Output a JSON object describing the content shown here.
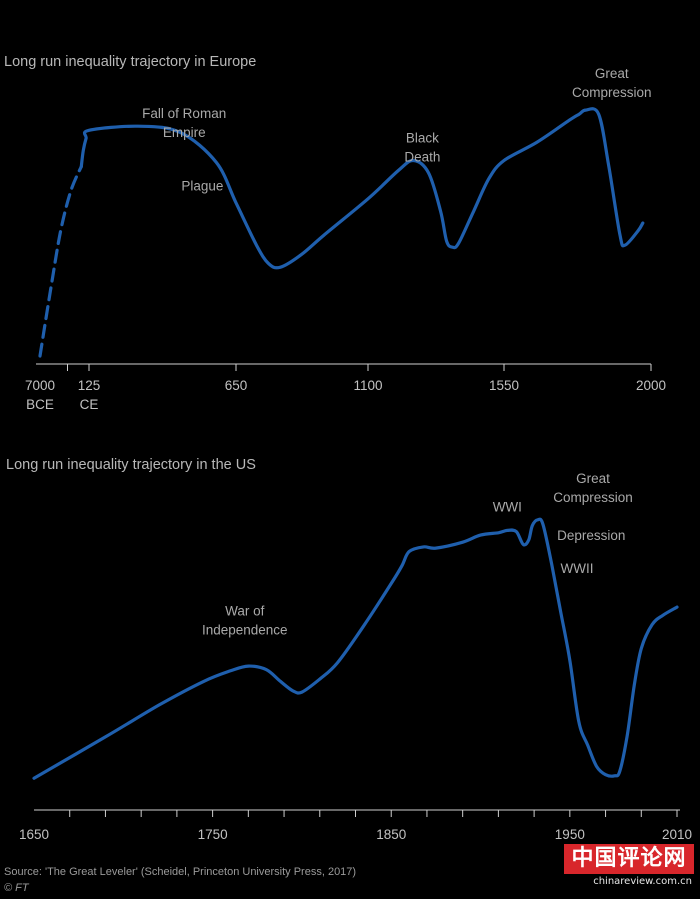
{
  "source": "Source: 'The Great Leveler' (Scheidel, Princeton University Press, 2017)",
  "credit": "© FT",
  "watermark": {
    "logo": "中国评论网",
    "url": "chinareview.com.cn"
  },
  "colors": {
    "background": "#000000",
    "line": "#1f5fad",
    "axis": "#cfcfcf",
    "text": "#aaaaaa"
  },
  "chart_data": [
    {
      "type": "line",
      "title": "Long run inequality trajectory in Europe",
      "xlabel": "",
      "ylabel": "",
      "y_axis_shown": false,
      "x_ticks": [
        {
          "label": [
            "7000",
            "BCE"
          ],
          "x": -7000,
          "tick": false
        },
        {
          "label": [
            "125",
            "CE"
          ],
          "x": 125
        },
        {
          "label": [
            "650"
          ],
          "x": 650
        },
        {
          "label": [
            "1100"
          ],
          "x": 1100
        },
        {
          "label": [
            "1550"
          ],
          "x": 1550
        },
        {
          "label": [
            "2000"
          ],
          "x": 2000
        }
      ],
      "minor_ticks": [
        -3000,
        125,
        650,
        1100,
        1550,
        2000
      ],
      "series": [
        {
          "style": "dashed",
          "points": [
            [
              -7000,
              0
            ],
            [
              -5500,
              32
            ],
            [
              -4000,
              62
            ],
            [
              -2500,
              82
            ],
            [
              -1000,
              94
            ]
          ]
        },
        {
          "style": "solid",
          "points": [
            [
              -1000,
              94
            ],
            [
              -700,
              102
            ],
            [
              -300,
              108
            ],
            [
              125,
              112
            ],
            [
              300,
              114
            ],
            [
              450,
              111
            ],
            [
              580,
              96
            ],
            [
              650,
              76
            ],
            [
              720,
              55
            ],
            [
              760,
              46
            ],
            [
              800,
              44
            ],
            [
              870,
              50
            ],
            [
              950,
              60
            ],
            [
              1100,
              78
            ],
            [
              1200,
              92
            ],
            [
              1250,
              97
            ],
            [
              1300,
              91
            ],
            [
              1340,
              72
            ],
            [
              1360,
              57
            ],
            [
              1380,
              54
            ],
            [
              1400,
              56
            ],
            [
              1450,
              72
            ],
            [
              1500,
              88
            ],
            [
              1550,
              97
            ],
            [
              1650,
              106
            ],
            [
              1750,
              117
            ],
            [
              1780,
              120
            ],
            [
              1800,
              122
            ],
            [
              1840,
              120
            ],
            [
              1870,
              95
            ],
            [
              1905,
              60
            ],
            [
              1920,
              55
            ],
            [
              1960,
              62
            ],
            [
              1975,
              66
            ]
          ]
        }
      ],
      "xlim": [
        -7000,
        2000
      ],
      "ylim": [
        0,
        130
      ],
      "annotations": [
        {
          "lines": [
            "Fall of Roman",
            "Empire"
          ],
          "x": 465,
          "y": 118
        },
        {
          "lines": [
            "Plague"
          ],
          "x": 530,
          "y": 82
        },
        {
          "lines": [
            "Black",
            "Death"
          ],
          "x": 1280,
          "y": 106
        },
        {
          "lines": [
            "Great",
            "Compression"
          ],
          "x": 1880,
          "y": 138
        }
      ]
    },
    {
      "type": "line",
      "title": "Long run inequality trajectory in the US",
      "xlabel": "",
      "ylabel": "",
      "y_axis_shown": false,
      "x_ticks": [
        {
          "label": [
            "1650"
          ],
          "x": 1650,
          "tick": false
        },
        {
          "label": [
            "1750"
          ],
          "x": 1750
        },
        {
          "label": [
            "1850"
          ],
          "x": 1850
        },
        {
          "label": [
            "1950"
          ],
          "x": 1950
        },
        {
          "label": [
            "2010"
          ],
          "x": 2010
        }
      ],
      "minor_ticks": [
        1670,
        1690,
        1710,
        1730,
        1750,
        1770,
        1790,
        1810,
        1830,
        1850,
        1870,
        1890,
        1910,
        1930,
        1950,
        1970,
        1990,
        2010
      ],
      "series": [
        {
          "style": "solid",
          "points": [
            [
              1650,
              10
            ],
            [
              1690,
              45
            ],
            [
              1720,
              72
            ],
            [
              1745,
              92
            ],
            [
              1760,
              101
            ],
            [
              1770,
              105
            ],
            [
              1780,
              102
            ],
            [
              1788,
              92
            ],
            [
              1795,
              84
            ],
            [
              1800,
              83
            ],
            [
              1810,
              94
            ],
            [
              1820,
              108
            ],
            [
              1835,
              140
            ],
            [
              1850,
              175
            ],
            [
              1856,
              190
            ],
            [
              1860,
              202
            ],
            [
              1868,
              206
            ],
            [
              1875,
              205
            ],
            [
              1890,
              210
            ],
            [
              1900,
              216
            ],
            [
              1910,
              218
            ],
            [
              1915,
              220
            ],
            [
              1920,
              219
            ],
            [
              1924,
              208
            ],
            [
              1927,
              212
            ],
            [
              1929,
              224
            ],
            [
              1932,
              229
            ],
            [
              1935,
              225
            ],
            [
              1940,
              190
            ],
            [
              1945,
              150
            ],
            [
              1950,
              110
            ],
            [
              1955,
              58
            ],
            [
              1960,
              38
            ],
            [
              1965,
              20
            ],
            [
              1970,
              13
            ],
            [
              1975,
              12
            ],
            [
              1978,
              16
            ],
            [
              1982,
              45
            ],
            [
              1986,
              88
            ],
            [
              1990,
              120
            ],
            [
              1996,
              140
            ],
            [
              2002,
              148
            ],
            [
              2010,
              155
            ]
          ]
        }
      ],
      "xlim": [
        1650,
        2010
      ],
      "ylim": [
        0,
        250
      ],
      "annotations": [
        {
          "lines": [
            "War of",
            "Independence"
          ],
          "x": 1768,
          "y": 148
        },
        {
          "lines": [
            "WWI"
          ],
          "x": 1915,
          "y": 236
        },
        {
          "lines": [
            "Great",
            "Compression"
          ],
          "x": 1963,
          "y": 260
        },
        {
          "lines": [
            "Depression"
          ],
          "x": 1962,
          "y": 212
        },
        {
          "lines": [
            "WWII"
          ],
          "x": 1954,
          "y": 184
        }
      ]
    }
  ]
}
